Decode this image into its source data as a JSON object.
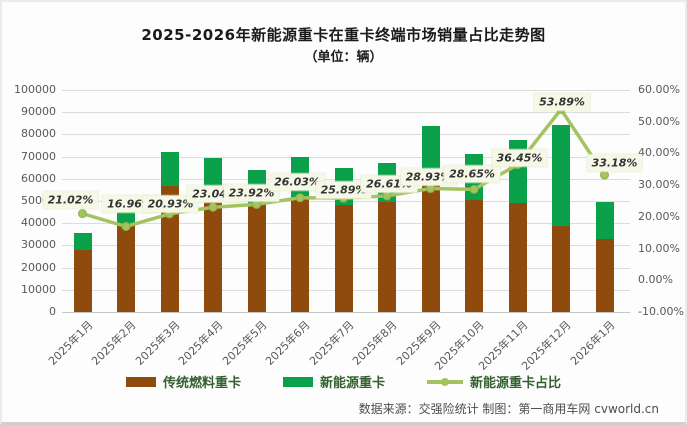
{
  "header": {
    "title": "2025-2026年新能源重卡在重卡终端市场销量占比走势图",
    "subtitle": "（单位：辆）"
  },
  "footer": {
    "text": "数据来源：交强险统计 制图：第一商用车网 cvworld.cn"
  },
  "legend": {
    "items": [
      {
        "label": "传统燃料重卡",
        "type": "bar"
      },
      {
        "label": "新能源重卡",
        "type": "bar"
      },
      {
        "label": "新能源重卡占比",
        "type": "line"
      }
    ]
  },
  "colors": {
    "traditional": "#8F4A0E",
    "new_energy": "#0BA14B",
    "share_line": "#A3C35F",
    "share_line_edge": "#8FAF4B",
    "label_box_bg": "#F6F8E7",
    "grid": "#DCDCDC",
    "axis_text": "#595959",
    "legend_text": "#33602F",
    "title_text": "#1A1A1A",
    "footer_text": "#4D4D4D"
  },
  "chart_data": {
    "type": "bar",
    "subtype": "stacked-bars-with-percentage-line",
    "title": "2025-2026年新能源重卡在重卡终端市场销量占比走势图",
    "unit": "辆",
    "categories": [
      "2025年1月",
      "2025年2月",
      "2025年3月",
      "2025年4月",
      "2025年5月",
      "2025年6月",
      "2025年7月",
      "2025年8月",
      "2025年9月",
      "2025年10月",
      "2025年11月",
      "2025年12月",
      "2026年1月"
    ],
    "series": [
      {
        "name": "传统燃料重卡",
        "type": "bar",
        "stack": "total",
        "yaxis": "left",
        "values": [
          28120,
          39030,
          56930,
          53410,
          48540,
          51630,
          48170,
          49390,
          59410,
          50660,
          49120,
          38920,
          33080
        ]
      },
      {
        "name": "新能源重卡",
        "type": "bar",
        "stack": "total",
        "yaxis": "left",
        "values": [
          7480,
          7970,
          15070,
          15990,
          15260,
          18170,
          16830,
          17910,
          24190,
          20340,
          28180,
          45480,
          16420
        ]
      },
      {
        "name": "新能源重卡占比",
        "type": "line",
        "yaxis": "right",
        "unit": "%",
        "values": [
          21.02,
          16.96,
          20.93,
          23.04,
          23.92,
          26.03,
          25.89,
          26.61,
          28.93,
          28.65,
          36.45,
          53.89,
          33.18
        ],
        "labels": [
          "21.02%",
          "16.96%",
          "20.93%",
          "23.04%",
          "23.92%",
          "26.03%",
          "25.89%",
          "26.61%",
          "28.93%",
          "28.65%",
          "36.45%",
          "53.89%",
          "33.18%"
        ]
      }
    ],
    "left_axis": {
      "min": 0,
      "max": 100000,
      "step": 10000,
      "tick_labels": [
        "100000",
        "90000",
        "80000",
        "70000",
        "60000",
        "50000",
        "40000",
        "30000",
        "20000",
        "10000",
        "0"
      ]
    },
    "right_axis": {
      "min": -10,
      "max": 60,
      "step": 10,
      "tick_labels": [
        "60.00%",
        "50.00%",
        "40.00%",
        "30.00%",
        "20.00%",
        "10.00%",
        "0.00%",
        "-10.00%"
      ]
    },
    "grid": "horizontal",
    "legend_position": "bottom"
  }
}
